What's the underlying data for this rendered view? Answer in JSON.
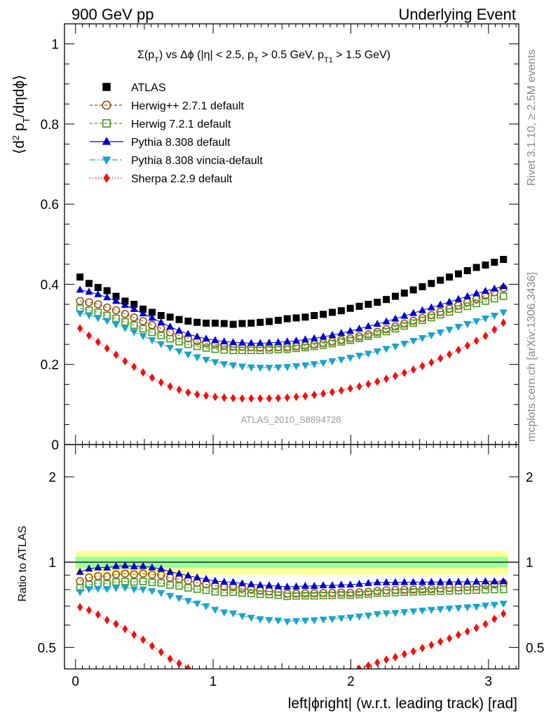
{
  "header": {
    "left": "900 GeV pp",
    "right": "Underlying Event"
  },
  "side_labels": {
    "rivet": "Rivet 3.1.10, ≥ 2.5M events",
    "mcplots": "mcplots.cern.ch [arXiv:1306.3436]"
  },
  "chart_data": {
    "type": "scatter",
    "title": "Σ(p_T) vs Δϕ (|η| < 2.5, p_T > 0.5 GeV, p_T1 > 1.5 GeV)",
    "watermark": "ATLAS_2010_S8894728",
    "xlabel": "left|ϕright| (w.r.t. leading track) [rad]",
    "ylabel": "⟨d² p_T/dηdϕ⟩",
    "xlim": [
      -0.08,
      3.22
    ],
    "xticks": [
      "0",
      "1",
      "2",
      "3"
    ],
    "main": {
      "ylim": [
        0,
        1.05
      ],
      "yticks": [
        "0",
        "0.2",
        "0.4",
        "0.6",
        "0.8",
        "1"
      ],
      "grid": false,
      "legend_position": "top-left"
    },
    "ratio": {
      "ylabel": "Ratio to ATLAS",
      "log_scale": true,
      "ylim": [
        0.42,
        2.6
      ],
      "yticks": [
        "0.5",
        "1",
        "2"
      ],
      "band_outer": [
        0.903,
        1.097
      ],
      "band_inner": [
        0.956,
        1.044
      ],
      "band_colors": [
        "#ffff99",
        "#99ff99"
      ]
    },
    "x": [
      0.0327,
      0.0982,
      0.1636,
      0.2291,
      0.2945,
      0.36,
      0.4254,
      0.4909,
      0.5563,
      0.6218,
      0.6872,
      0.7527,
      0.8181,
      0.8836,
      0.949,
      1.0145,
      1.0799,
      1.1454,
      1.2108,
      1.2763,
      1.3417,
      1.4072,
      1.4726,
      1.5381,
      1.6035,
      1.669,
      1.7344,
      1.7999,
      1.8653,
      1.9308,
      1.9962,
      2.0617,
      2.1271,
      2.1926,
      2.258,
      2.3235,
      2.3889,
      2.4544,
      2.5198,
      2.5853,
      2.6507,
      2.7162,
      2.7816,
      2.8471,
      2.9125,
      2.978,
      3.0434,
      3.1089
    ],
    "series": [
      {
        "name": "ATLAS",
        "color": "#000000",
        "marker": "square",
        "values": [
          0.418,
          0.402,
          0.392,
          0.384,
          0.37,
          0.358,
          0.35,
          0.338,
          0.33,
          0.322,
          0.318,
          0.312,
          0.308,
          0.305,
          0.303,
          0.303,
          0.302,
          0.3,
          0.302,
          0.303,
          0.305,
          0.307,
          0.31,
          0.314,
          0.316,
          0.318,
          0.322,
          0.325,
          0.33,
          0.334,
          0.34,
          0.345,
          0.35,
          0.355,
          0.362,
          0.37,
          0.378,
          0.386,
          0.394,
          0.402,
          0.41,
          0.418,
          0.426,
          0.434,
          0.442,
          0.448,
          0.455,
          0.462
        ]
      },
      {
        "name": "Herwig++ 2.7.1 default",
        "color": "#9b4b0f",
        "marker": "open-circle",
        "values": [
          0.358,
          0.355,
          0.35,
          0.342,
          0.335,
          0.326,
          0.317,
          0.308,
          0.298,
          0.29,
          0.28,
          0.272,
          0.265,
          0.258,
          0.253,
          0.25,
          0.247,
          0.245,
          0.244,
          0.243,
          0.242,
          0.242,
          0.243,
          0.243,
          0.245,
          0.247,
          0.25,
          0.253,
          0.257,
          0.261,
          0.265,
          0.27,
          0.275,
          0.281,
          0.288,
          0.295,
          0.302,
          0.309,
          0.316,
          0.323,
          0.331,
          0.339,
          0.347,
          0.355,
          0.363,
          0.372,
          0.38,
          0.39
        ]
      },
      {
        "name": "Herwig 7.2.1 default",
        "color": "#4a9a1a",
        "marker": "open-square",
        "values": [
          0.34,
          0.335,
          0.33,
          0.322,
          0.315,
          0.306,
          0.298,
          0.289,
          0.28,
          0.272,
          0.264,
          0.257,
          0.25,
          0.245,
          0.241,
          0.238,
          0.236,
          0.235,
          0.235,
          0.235,
          0.235,
          0.236,
          0.237,
          0.238,
          0.24,
          0.242,
          0.245,
          0.248,
          0.252,
          0.256,
          0.26,
          0.265,
          0.27,
          0.276,
          0.282,
          0.289,
          0.296,
          0.303,
          0.31,
          0.317,
          0.324,
          0.331,
          0.338,
          0.345,
          0.352,
          0.358,
          0.364,
          0.37
        ]
      },
      {
        "name": "Pythia 8.308 default",
        "color": "#0000cc",
        "marker": "triangle-up",
        "values": [
          0.386,
          0.381,
          0.375,
          0.367,
          0.358,
          0.348,
          0.338,
          0.327,
          0.316,
          0.305,
          0.294,
          0.284,
          0.276,
          0.269,
          0.264,
          0.26,
          0.257,
          0.255,
          0.254,
          0.253,
          0.253,
          0.254,
          0.255,
          0.257,
          0.259,
          0.262,
          0.265,
          0.269,
          0.273,
          0.278,
          0.283,
          0.289,
          0.295,
          0.301,
          0.307,
          0.314,
          0.321,
          0.328,
          0.335,
          0.342,
          0.349,
          0.356,
          0.363,
          0.37,
          0.377,
          0.383,
          0.389,
          0.395
        ]
      },
      {
        "name": "Pythia 8.308 vincia-default",
        "color": "#1aa3c9",
        "marker": "triangle-down",
        "values": [
          0.328,
          0.323,
          0.316,
          0.309,
          0.3,
          0.291,
          0.281,
          0.271,
          0.261,
          0.251,
          0.242,
          0.233,
          0.225,
          0.218,
          0.212,
          0.206,
          0.201,
          0.198,
          0.195,
          0.193,
          0.192,
          0.192,
          0.193,
          0.194,
          0.196,
          0.198,
          0.201,
          0.204,
          0.208,
          0.212,
          0.217,
          0.222,
          0.227,
          0.233,
          0.239,
          0.245,
          0.252,
          0.259,
          0.266,
          0.273,
          0.28,
          0.287,
          0.294,
          0.301,
          0.308,
          0.315,
          0.322,
          0.33
        ]
      },
      {
        "name": "Sherpa 2.2.9 default",
        "color": "#ee1111",
        "marker": "diamond",
        "values": [
          0.29,
          0.272,
          0.256,
          0.24,
          0.224,
          0.208,
          0.194,
          0.18,
          0.167,
          0.155,
          0.145,
          0.137,
          0.13,
          0.125,
          0.122,
          0.119,
          0.117,
          0.116,
          0.115,
          0.115,
          0.115,
          0.115,
          0.116,
          0.117,
          0.119,
          0.121,
          0.124,
          0.127,
          0.131,
          0.135,
          0.14,
          0.145,
          0.151,
          0.157,
          0.164,
          0.171,
          0.179,
          0.187,
          0.196,
          0.205,
          0.215,
          0.225,
          0.236,
          0.247,
          0.259,
          0.271,
          0.287,
          0.304
        ]
      }
    ]
  }
}
